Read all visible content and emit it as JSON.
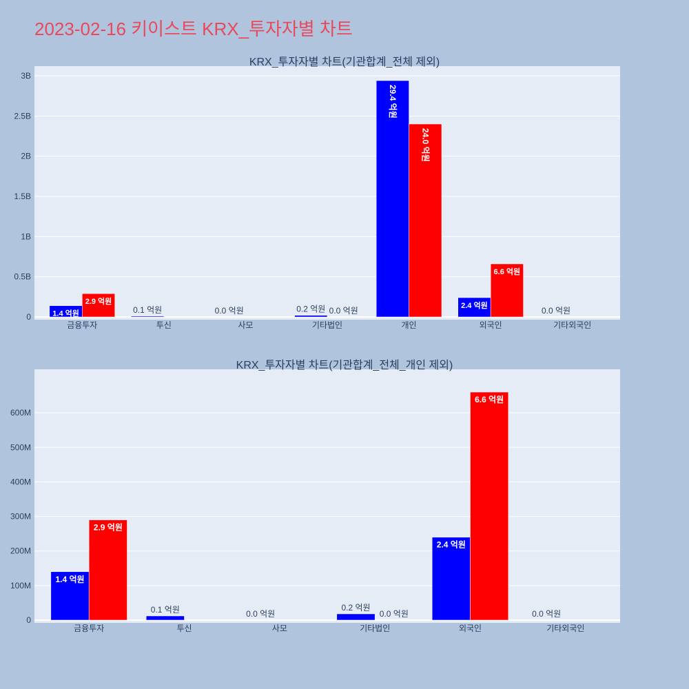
{
  "page_title": "2023-02-16 키이스트 KRX_투자자별 차트",
  "chart_data": [
    {
      "type": "bar",
      "title": "KRX_투자자별 차트(기관합계_전체 제외)",
      "categories": [
        "금융투자",
        "투신",
        "사모",
        "기타법인",
        "개인",
        "외국인",
        "기타외국인"
      ],
      "series": [
        {
          "color": "#0000ff",
          "values": [
            140000000,
            10000000,
            0,
            20000000,
            2940000000,
            240000000,
            0
          ],
          "labels": [
            "1.4 억원",
            "0.1 억원",
            "0.0 억원",
            "0.2 억원",
            "29.4 억원",
            "2.4 억원",
            "0.0 억원"
          ]
        },
        {
          "color": "#ff0000",
          "values": [
            290000000,
            0,
            0,
            0,
            2400000000,
            660000000,
            0
          ],
          "labels": [
            "2.9 억원",
            "",
            "",
            "0.0 억원",
            "24.0 억원",
            "6.6 억원",
            ""
          ]
        }
      ],
      "ylim": [
        0,
        3000000000
      ],
      "yticks": [
        0,
        500000000,
        1000000000,
        1500000000,
        2000000000,
        2500000000,
        3000000000
      ],
      "ytick_labels": [
        "0",
        "0.5B",
        "1B",
        "1.5B",
        "2B",
        "2.5B",
        "3B"
      ],
      "grid": true
    },
    {
      "type": "bar",
      "title": "KRX_투자자별 차트(기관합계_전체_개인 제외)",
      "categories": [
        "금융투자",
        "투신",
        "사모",
        "기타법인",
        "외국인",
        "기타외국인"
      ],
      "series": [
        {
          "color": "#0000ff",
          "values": [
            140000000,
            12000000,
            0,
            18000000,
            240000000,
            0
          ],
          "labels": [
            "1.4 억원",
            "0.1 억원",
            "0.0 억원",
            "0.2 억원",
            "2.4 억원",
            "0.0 억원"
          ]
        },
        {
          "color": "#ff0000",
          "values": [
            290000000,
            0,
            0,
            0,
            660000000,
            0
          ],
          "labels": [
            "2.9 억원",
            "",
            "",
            "0.0 억원",
            "6.6 억원",
            ""
          ]
        }
      ],
      "ylim": [
        0,
        700000000
      ],
      "yticks": [
        0,
        100000000,
        200000000,
        300000000,
        400000000,
        500000000,
        600000000
      ],
      "ytick_labels": [
        "0",
        "100M",
        "200M",
        "300M",
        "400M",
        "500M",
        "600M"
      ],
      "grid": true
    }
  ]
}
